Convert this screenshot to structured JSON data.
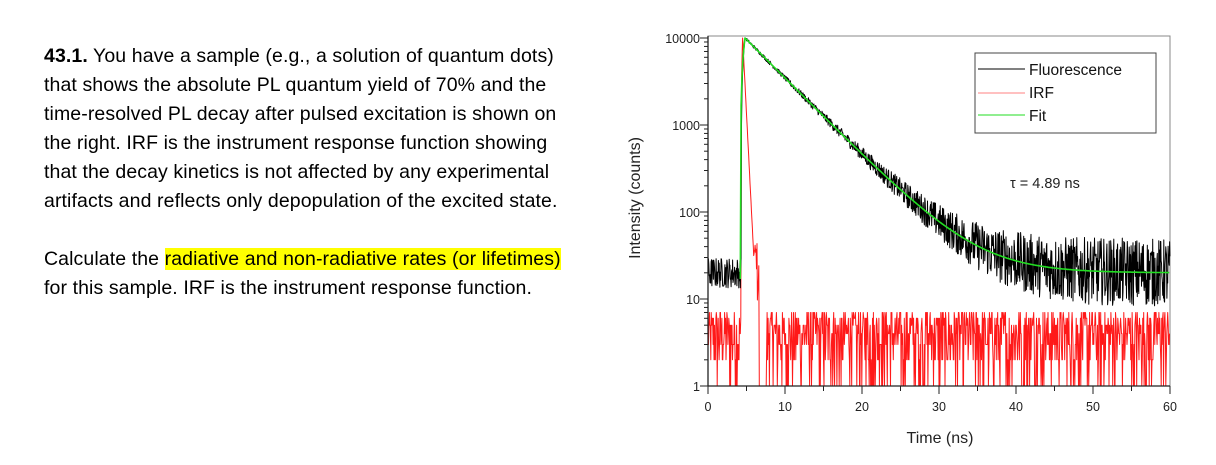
{
  "question": {
    "number": "43.1.",
    "paragraph1": " You have a sample (e.g., a solution of quantum dots) that shows the absolute PL quantum yield of 70% and the time-resolved PL decay after pulsed excitation is shown on the right. IRF is the instrument response function showing that the decay kinetics is not affected by any experimental artifacts and reflects only depopulation of the excited state.",
    "paragraph2_prefix": "Calculate the ",
    "paragraph2_highlight": "radiative and non-radiative rates (or lifetimes)",
    "paragraph2_suffix": " for this sample. IRF is the instrument response function.",
    "highlight_color": "#ffff00"
  },
  "chart_data": {
    "type": "line",
    "title": "",
    "xlabel": "Time (ns)",
    "ylabel": "Intensity (counts)",
    "xlim": [
      0,
      60
    ],
    "ylim": [
      1,
      10000
    ],
    "yscale": "log",
    "xticks": [
      "0",
      "10",
      "20",
      "30",
      "40",
      "50",
      "60"
    ],
    "yticks": [
      "1",
      "10",
      "100",
      "1000",
      "10000"
    ],
    "grid": false,
    "legend_position": "upper right",
    "legend": [
      "Fluorescence",
      "IRF",
      "Fit"
    ],
    "annotation": "τ = 4.89 ns",
    "series": [
      {
        "name": "Fluorescence",
        "color": "#000000",
        "description": "noisy baseline ~20 counts for t<4.5 ns, rises to ~10000 at t≈4.8 ns, mono-exponential decay (τ = 4.89 ns) to background ~20 counts",
        "x": [
          0,
          2,
          4.3,
          4.8,
          10,
          15,
          20,
          25,
          30,
          35,
          40,
          45,
          50,
          55,
          60
        ],
        "values": [
          20,
          20,
          20,
          10000,
          3400,
          1180,
          420,
          150,
          62,
          35,
          25,
          22,
          21,
          20,
          20
        ]
      },
      {
        "name": "IRF",
        "color": "#ff0000",
        "description": "sharp peak ~10000 at t≈4.5 ns, falls to ~20 by 6.5 ns, noisy background 1–7 counts",
        "x": [
          0,
          4.3,
          4.5,
          5.0,
          5.5,
          6.0,
          6.5,
          7,
          10,
          20,
          30,
          40,
          50,
          60
        ],
        "values": [
          3,
          3,
          10000,
          300,
          40,
          25,
          12,
          4,
          3,
          3,
          3,
          3,
          3,
          3
        ]
      },
      {
        "name": "Fit",
        "color": "#00dd00",
        "description": "exponential fit, τ = 4.89 ns, with constant background ~20",
        "x": [
          4.2,
          4.8,
          10,
          15,
          20,
          25,
          30,
          35,
          40,
          45,
          50,
          55,
          60
        ],
        "values": [
          17,
          10000,
          3400,
          1180,
          420,
          150,
          62,
          35,
          25,
          22,
          21,
          20,
          20
        ]
      }
    ]
  },
  "chart_labels": {
    "xlabel": "Time (ns)",
    "ylabel": "Intensity (counts)",
    "annotation": "τ = 4.89 ns",
    "legend": [
      "Fluorescence",
      "IRF",
      "Fit"
    ],
    "xticks": [
      "0",
      "10",
      "20",
      "30",
      "40",
      "50",
      "60"
    ],
    "yticks": [
      "1",
      "10",
      "100",
      "1000",
      "10000"
    ]
  }
}
